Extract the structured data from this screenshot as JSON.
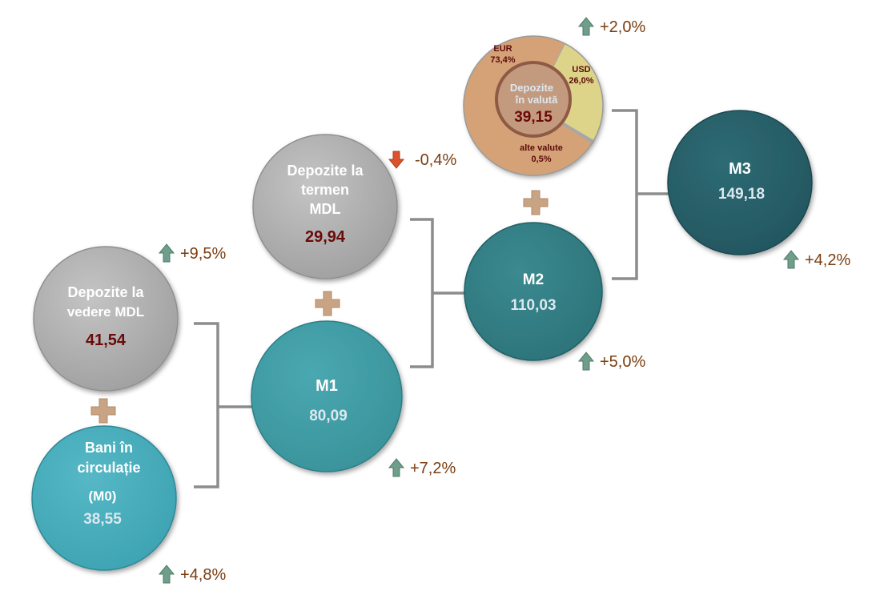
{
  "nodes": {
    "bani": {
      "line1": "Bani în",
      "line2": "circulație",
      "line3": "(M0)",
      "value": "38,55",
      "change": "+4,8%",
      "direction": "up"
    },
    "vedere": {
      "line1": "Depozite la",
      "line2": "vedere MDL",
      "value": "41,54",
      "change": "+9,5%",
      "direction": "up"
    },
    "m1": {
      "label": "M1",
      "value": "80,09",
      "change": "+7,2%",
      "direction": "up"
    },
    "termen": {
      "line1": "Depozite la",
      "line2": "termen",
      "line3": "MDL",
      "value": "29,94",
      "change": "-0,4%",
      "direction": "down"
    },
    "m2": {
      "label": "M2",
      "value": "110,03",
      "change": "+5,0%",
      "direction": "up"
    },
    "valuta": {
      "line1": "Depozite",
      "line2": "în valută",
      "value": "39,15",
      "change": "+2,0%",
      "direction": "up",
      "breakdown": [
        {
          "name": "EUR",
          "pct": "73,4%",
          "share": 73.4,
          "color": "#d4a276"
        },
        {
          "name": "USD",
          "pct": "26,0%",
          "share": 26.0,
          "color": "#ddd489"
        },
        {
          "name": "alte valute",
          "pct": "0,5%",
          "share": 0.5,
          "color": "#9a8f7a"
        }
      ]
    },
    "m3": {
      "label": "M3",
      "value": "149,18",
      "change": "+4,2%",
      "direction": "up"
    }
  },
  "colors": {
    "grey": "#a9a9a9",
    "teal_light": "#45aab9",
    "teal_mid": "#3f9ea5",
    "teal_dark": "#2f7c82",
    "teal_darkest": "#265d67",
    "plus": "#c8a484",
    "bracket": "#8c8c8c",
    "arrow_up": "#6f9e8a",
    "arrow_down": "#d9532c"
  }
}
